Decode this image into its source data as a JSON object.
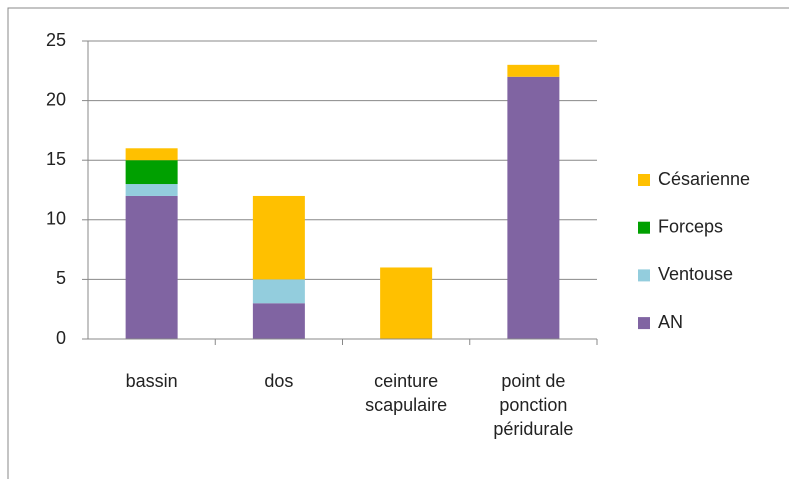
{
  "chart_data": {
    "type": "stacked_bar",
    "categories": [
      "bassin",
      "dos",
      "ceinture scapulaire",
      "point de ponction péridurale"
    ],
    "series": [
      {
        "name": "AN",
        "color": "#8064a2",
        "values": [
          12,
          3,
          0,
          22
        ]
      },
      {
        "name": "Ventouse",
        "color": "#93cddd",
        "values": [
          1,
          2,
          0,
          0
        ]
      },
      {
        "name": "Forceps",
        "color": "#00a000",
        "values": [
          2,
          0,
          0,
          0
        ]
      },
      {
        "name": "Césarienne",
        "color": "#ffc000",
        "values": [
          1,
          7,
          6,
          1
        ]
      }
    ],
    "ylim": [
      0,
      25
    ],
    "yticks": [
      0,
      5,
      10,
      15,
      20,
      25
    ],
    "grid": true,
    "legend": "right"
  }
}
